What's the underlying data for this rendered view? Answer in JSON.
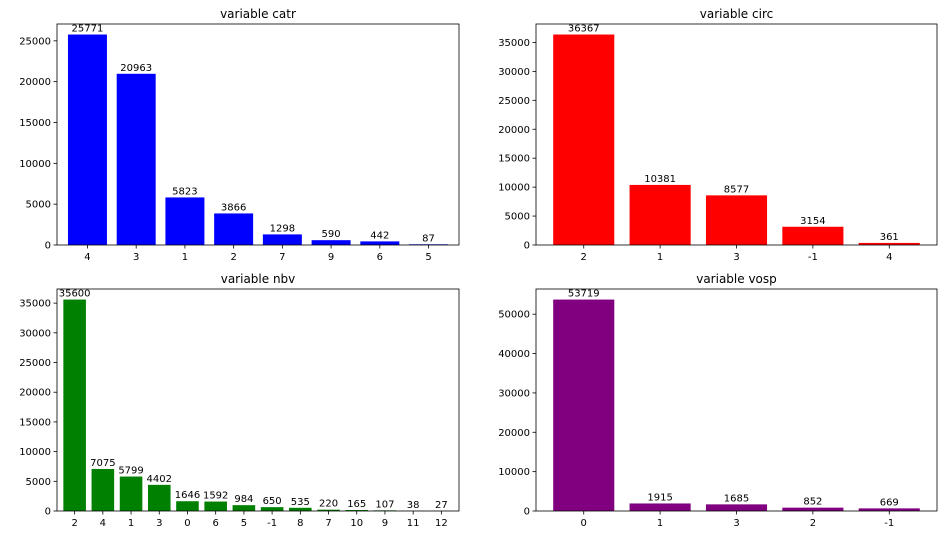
{
  "chart_data": [
    {
      "type": "bar",
      "title": "variable catr",
      "categories": [
        "4",
        "3",
        "1",
        "2",
        "7",
        "9",
        "6",
        "5"
      ],
      "values": [
        25771,
        20963,
        5823,
        3866,
        1298,
        590,
        442,
        87
      ],
      "data_labels": [
        "25771",
        "20963",
        "5823",
        "3866",
        "1298",
        "590",
        "442",
        "87"
      ],
      "color": "#0000ff",
      "ylim": [
        0,
        27060
      ],
      "yticks": [
        0,
        5000,
        10000,
        15000,
        20000,
        25000
      ],
      "ytick_labels": [
        "0",
        "5000",
        "10000",
        "15000",
        "20000",
        "25000"
      ],
      "grid": false
    },
    {
      "type": "bar",
      "title": "variable circ",
      "categories": [
        "2",
        "1",
        "3",
        "-1",
        "4"
      ],
      "values": [
        36367,
        10381,
        8577,
        3154,
        361
      ],
      "data_labels": [
        "36367",
        "10381",
        "8577",
        "3154",
        "361"
      ],
      "color": "#ff0000",
      "ylim": [
        0,
        38185
      ],
      "yticks": [
        0,
        5000,
        10000,
        15000,
        20000,
        25000,
        30000,
        35000
      ],
      "ytick_labels": [
        "0",
        "5000",
        "10000",
        "15000",
        "20000",
        "25000",
        "30000",
        "35000"
      ],
      "grid": false
    },
    {
      "type": "bar",
      "title": "variable nbv",
      "categories": [
        "2",
        "4",
        "1",
        "3",
        "0",
        "6",
        "5",
        "-1",
        "8",
        "7",
        "10",
        "9",
        "11",
        "12"
      ],
      "values": [
        35600,
        7075,
        5799,
        4402,
        1646,
        1592,
        984,
        650,
        535,
        220,
        165,
        107,
        38,
        27
      ],
      "data_labels": [
        "35600",
        "7075",
        "5799",
        "4402",
        "1646",
        "1592",
        "984",
        "650",
        "535",
        "220",
        "165",
        "107",
        "38",
        "27"
      ],
      "color": "#008000",
      "ylim": [
        0,
        37380
      ],
      "yticks": [
        0,
        5000,
        10000,
        15000,
        20000,
        25000,
        30000,
        35000
      ],
      "ytick_labels": [
        "0",
        "5000",
        "10000",
        "15000",
        "20000",
        "25000",
        "30000",
        "35000"
      ],
      "grid": false
    },
    {
      "type": "bar",
      "title": "variable vosp",
      "categories": [
        "0",
        "1",
        "3",
        "2",
        "-1"
      ],
      "values": [
        53719,
        1915,
        1685,
        852,
        669
      ],
      "data_labels": [
        "53719",
        "1915",
        "1685",
        "852",
        "669"
      ],
      "color": "#800080",
      "ylim": [
        0,
        56405
      ],
      "yticks": [
        0,
        10000,
        20000,
        30000,
        40000,
        50000
      ],
      "ytick_labels": [
        "0",
        "10000",
        "20000",
        "30000",
        "40000",
        "50000"
      ],
      "grid": false
    }
  ]
}
